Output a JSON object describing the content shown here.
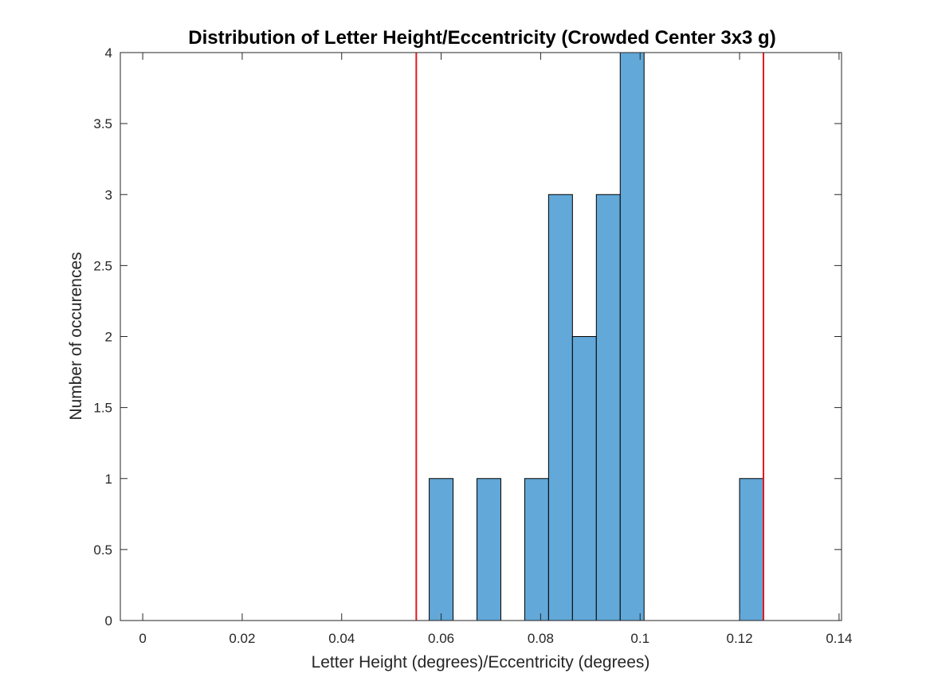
{
  "chart_data": {
    "type": "bar",
    "title": "Distribution of Letter Height/Eccentricity (Crowded Center 3x3 g)",
    "xlabel": "Letter Height (degrees)/Eccentricity (degrees)",
    "ylabel": "Number of occurences",
    "xlim": [
      -0.0045,
      0.1405
    ],
    "ylim": [
      0,
      4
    ],
    "grid": false,
    "x_ticks": [
      0,
      0.02,
      0.04,
      0.06,
      0.08,
      0.1,
      0.12,
      0.14
    ],
    "x_tick_labels": [
      "0",
      "0.02",
      "0.04",
      "0.06",
      "0.08",
      "0.1",
      "0.12",
      "0.14"
    ],
    "y_ticks": [
      0,
      0.5,
      1,
      1.5,
      2,
      2.5,
      3,
      3.5,
      4
    ],
    "y_tick_labels": [
      "0",
      "0.5",
      "1",
      "1.5",
      "2",
      "2.5",
      "3",
      "3.5",
      "4"
    ],
    "bin_edges": [
      0,
      0.0048,
      0.0096,
      0.0144,
      0.0192,
      0.024,
      0.0288,
      0.0336,
      0.0384,
      0.0432,
      0.048,
      0.0528,
      0.0576,
      0.0624,
      0.0672,
      0.072,
      0.0768,
      0.0816,
      0.0864,
      0.0912,
      0.096,
      0.1008,
      0.1056,
      0.1104,
      0.1152,
      0.12,
      0.1248,
      0.1296,
      0.1344,
      0.1392
    ],
    "counts": [
      0,
      0,
      0,
      0,
      0,
      0,
      0,
      0,
      0,
      0,
      0,
      0,
      1,
      0,
      1,
      0,
      1,
      3,
      2,
      3,
      4,
      0,
      0,
      0,
      0,
      1,
      0,
      0,
      0
    ],
    "reference_lines_x": [
      0.055,
      0.1248
    ],
    "colors": {
      "bar_fill": "#62a8d8",
      "bar_edge": "#000000",
      "reference_line": "#e3191c",
      "axis": "#262626"
    }
  }
}
